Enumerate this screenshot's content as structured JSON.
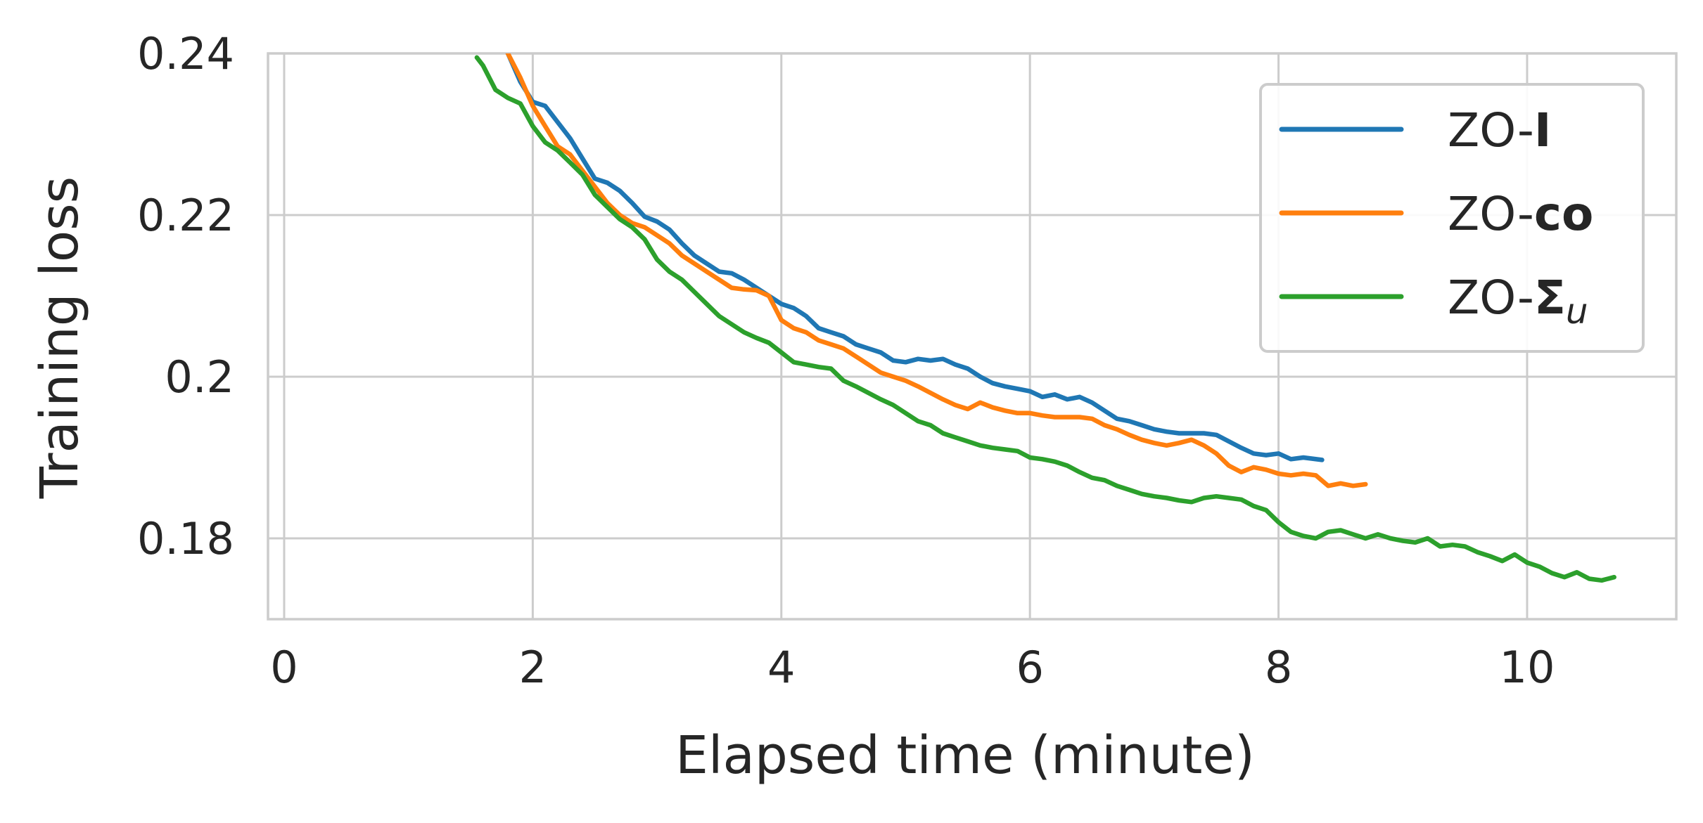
{
  "chart_data": {
    "type": "line",
    "title": "",
    "xlabel": "Elapsed time (minute)",
    "ylabel": "Training loss",
    "xlim": [
      -0.13,
      11.2
    ],
    "ylim": [
      0.17,
      0.24
    ],
    "xticks": [
      0,
      2,
      4,
      6,
      8,
      10
    ],
    "xtick_labels": [
      "0",
      "2",
      "4",
      "6",
      "8",
      "10"
    ],
    "yticks": [
      0.18,
      0.2,
      0.22,
      0.24
    ],
    "ytick_labels": [
      "0.18",
      "0.2",
      "0.22",
      "0.24"
    ],
    "grid": true,
    "legend_position": "top-right",
    "series": [
      {
        "name": "ZO-I",
        "label_prefix": "ZO-",
        "label_symbol": "I",
        "label_subscript": "",
        "color": "#1f77b4",
        "x": [
          1.8,
          1.9,
          2.0,
          2.1,
          2.2,
          2.3,
          2.4,
          2.5,
          2.6,
          2.7,
          2.8,
          2.9,
          3.0,
          3.1,
          3.2,
          3.3,
          3.4,
          3.5,
          3.6,
          3.7,
          3.8,
          3.9,
          4.0,
          4.1,
          4.2,
          4.3,
          4.4,
          4.5,
          4.6,
          4.7,
          4.8,
          4.9,
          5.0,
          5.1,
          5.2,
          5.3,
          5.4,
          5.5,
          5.6,
          5.7,
          5.8,
          5.9,
          6.0,
          6.1,
          6.2,
          6.3,
          6.4,
          6.5,
          6.6,
          6.7,
          6.8,
          6.9,
          7.0,
          7.1,
          7.2,
          7.3,
          7.4,
          7.5,
          7.6,
          7.7,
          7.8,
          7.9,
          8.0,
          8.1,
          8.2,
          8.35
        ],
        "y": [
          0.24,
          0.2365,
          0.234,
          0.2335,
          0.2315,
          0.2295,
          0.227,
          0.2245,
          0.224,
          0.223,
          0.2215,
          0.2198,
          0.2192,
          0.2182,
          0.2165,
          0.215,
          0.214,
          0.213,
          0.2128,
          0.212,
          0.211,
          0.21,
          0.209,
          0.2085,
          0.2075,
          0.206,
          0.2055,
          0.205,
          0.204,
          0.2035,
          0.203,
          0.202,
          0.2018,
          0.2022,
          0.202,
          0.2022,
          0.2015,
          0.201,
          0.2,
          0.1992,
          0.1988,
          0.1985,
          0.1982,
          0.1975,
          0.1978,
          0.1972,
          0.1975,
          0.1968,
          0.1958,
          0.1948,
          0.1945,
          0.194,
          0.1935,
          0.1932,
          0.193,
          0.193,
          0.193,
          0.1928,
          0.192,
          0.1912,
          0.1905,
          0.1903,
          0.1905,
          0.1898,
          0.19,
          0.1897
        ]
      },
      {
        "name": "ZO-co",
        "label_prefix": "ZO-",
        "label_symbol": "co",
        "label_subscript": "",
        "color": "#ff7f0e",
        "x": [
          1.8,
          1.9,
          2.0,
          2.1,
          2.2,
          2.3,
          2.4,
          2.5,
          2.6,
          2.7,
          2.8,
          2.9,
          3.0,
          3.1,
          3.2,
          3.3,
          3.4,
          3.5,
          3.6,
          3.7,
          3.8,
          3.9,
          4.0,
          4.1,
          4.2,
          4.3,
          4.4,
          4.5,
          4.6,
          4.7,
          4.8,
          4.9,
          5.0,
          5.1,
          5.2,
          5.3,
          5.4,
          5.5,
          5.6,
          5.7,
          5.8,
          5.9,
          6.0,
          6.1,
          6.2,
          6.3,
          6.4,
          6.5,
          6.6,
          6.7,
          6.8,
          6.9,
          7.0,
          7.1,
          7.2,
          7.3,
          7.4,
          7.5,
          7.6,
          7.7,
          7.8,
          7.9,
          8.0,
          8.1,
          8.2,
          8.3,
          8.4,
          8.5,
          8.6,
          8.7
        ],
        "y": [
          0.24,
          0.237,
          0.2335,
          0.231,
          0.2285,
          0.2275,
          0.2255,
          0.2235,
          0.2215,
          0.22,
          0.219,
          0.2185,
          0.2175,
          0.2165,
          0.215,
          0.214,
          0.213,
          0.212,
          0.211,
          0.2108,
          0.2107,
          0.21,
          0.207,
          0.206,
          0.2055,
          0.2045,
          0.204,
          0.2035,
          0.2025,
          0.2015,
          0.2005,
          0.2,
          0.1995,
          0.1988,
          0.198,
          0.1972,
          0.1965,
          0.196,
          0.1968,
          0.1962,
          0.1958,
          0.1955,
          0.1955,
          0.1952,
          0.195,
          0.195,
          0.195,
          0.1948,
          0.194,
          0.1935,
          0.1928,
          0.1922,
          0.1918,
          0.1915,
          0.1918,
          0.1922,
          0.1915,
          0.1905,
          0.189,
          0.1882,
          0.1888,
          0.1885,
          0.188,
          0.1878,
          0.188,
          0.1878,
          0.1865,
          0.1868,
          0.1865,
          0.1867
        ]
      },
      {
        "name": "ZO-Σu",
        "label_prefix": "ZO-",
        "label_symbol": "Σ",
        "label_subscript": "u",
        "color": "#2ca02c",
        "x": [
          1.55,
          1.6,
          1.7,
          1.8,
          1.9,
          2.0,
          2.1,
          2.2,
          2.3,
          2.4,
          2.5,
          2.6,
          2.7,
          2.8,
          2.9,
          3.0,
          3.1,
          3.2,
          3.3,
          3.4,
          3.5,
          3.6,
          3.7,
          3.8,
          3.9,
          4.0,
          4.1,
          4.2,
          4.3,
          4.4,
          4.5,
          4.6,
          4.7,
          4.8,
          4.9,
          5.0,
          5.1,
          5.2,
          5.3,
          5.4,
          5.5,
          5.6,
          5.7,
          5.8,
          5.9,
          6.0,
          6.1,
          6.2,
          6.3,
          6.4,
          6.5,
          6.6,
          6.7,
          6.8,
          6.9,
          7.0,
          7.1,
          7.2,
          7.3,
          7.4,
          7.5,
          7.6,
          7.7,
          7.8,
          7.9,
          8.0,
          8.1,
          8.2,
          8.3,
          8.4,
          8.5,
          8.6,
          8.7,
          8.8,
          8.9,
          9.0,
          9.1,
          9.2,
          9.3,
          9.4,
          9.5,
          9.6,
          9.7,
          9.8,
          9.9,
          10.0,
          10.1,
          10.2,
          10.3,
          10.4,
          10.5,
          10.6,
          10.7
        ],
        "y": [
          0.2395,
          0.2385,
          0.2355,
          0.2345,
          0.2338,
          0.231,
          0.229,
          0.228,
          0.2265,
          0.225,
          0.2225,
          0.221,
          0.2195,
          0.2185,
          0.217,
          0.2145,
          0.213,
          0.212,
          0.2105,
          0.209,
          0.2075,
          0.2065,
          0.2055,
          0.2048,
          0.2042,
          0.203,
          0.2018,
          0.2015,
          0.2012,
          0.201,
          0.1995,
          0.1988,
          0.198,
          0.1972,
          0.1965,
          0.1955,
          0.1945,
          0.194,
          0.193,
          0.1925,
          0.192,
          0.1915,
          0.1912,
          0.191,
          0.1908,
          0.19,
          0.1898,
          0.1895,
          0.189,
          0.1882,
          0.1875,
          0.1872,
          0.1865,
          0.186,
          0.1855,
          0.1852,
          0.185,
          0.1847,
          0.1845,
          0.185,
          0.1852,
          0.185,
          0.1848,
          0.184,
          0.1835,
          0.182,
          0.1808,
          0.1803,
          0.18,
          0.1808,
          0.181,
          0.1805,
          0.18,
          0.1805,
          0.18,
          0.1797,
          0.1795,
          0.18,
          0.179,
          0.1792,
          0.179,
          0.1783,
          0.1778,
          0.1772,
          0.178,
          0.177,
          0.1765,
          0.1757,
          0.1752,
          0.1758,
          0.175,
          0.1748,
          0.1752
        ]
      }
    ]
  }
}
